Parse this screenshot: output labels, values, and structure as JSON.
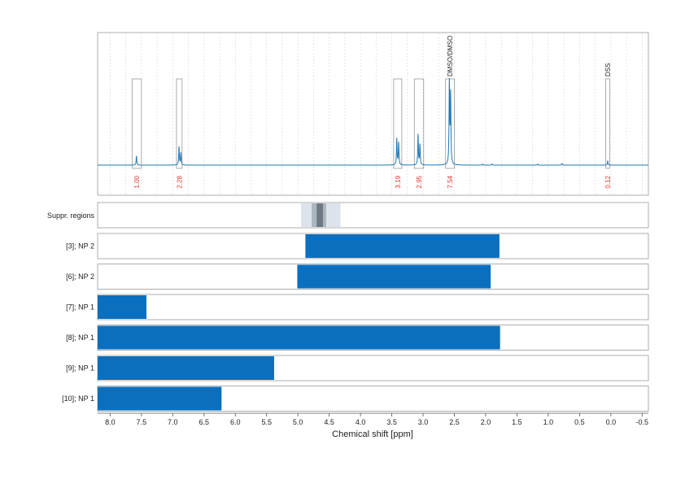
{
  "chart_data": {
    "type": "line",
    "xlabel": "Chemical shift [ppm]",
    "xlim": [
      8.2,
      -0.6
    ],
    "x_ticks": [
      8.0,
      7.5,
      7.0,
      6.5,
      6.0,
      5.5,
      5.0,
      4.5,
      4.0,
      3.5,
      3.0,
      2.5,
      2.0,
      1.5,
      1.0,
      0.5,
      0.0,
      -0.5
    ],
    "x_tick_labels": [
      "8.0",
      "7.5",
      "7.0",
      "6.5",
      "6.0",
      "5.5",
      "5.0",
      "4.5",
      "4.0",
      "3.5",
      "3.0",
      "2.5",
      "2.0",
      "1.5",
      "1.0",
      "0.5",
      "0.0",
      "-0.5"
    ],
    "grid": true,
    "spectrum": {
      "color": "#1f77b4",
      "baseline": 0.0,
      "peaks": [
        {
          "x": 7.58,
          "h": 0.09
        },
        {
          "x": 6.9,
          "h": 0.18
        },
        {
          "x": 6.87,
          "h": 0.12
        },
        {
          "x": 3.42,
          "h": 0.26
        },
        {
          "x": 3.39,
          "h": 0.22
        },
        {
          "x": 3.08,
          "h": 0.3
        },
        {
          "x": 3.05,
          "h": 0.2
        },
        {
          "x": 2.58,
          "h": 0.8
        },
        {
          "x": 2.56,
          "h": 0.68
        },
        {
          "x": 0.05,
          "h": 0.04
        },
        {
          "x": 1.9,
          "h": 0.012
        },
        {
          "x": 1.17,
          "h": 0.01
        },
        {
          "x": 0.78,
          "h": 0.015
        },
        {
          "x": 2.05,
          "h": 0.01
        }
      ]
    },
    "integrals": [
      {
        "from": 7.65,
        "to": 7.5,
        "value": "1.00"
      },
      {
        "from": 6.94,
        "to": 6.85,
        "value": "2.28"
      },
      {
        "from": 3.47,
        "to": 3.34,
        "value": "3.19"
      },
      {
        "from": 3.14,
        "to": 2.99,
        "value": "2.95"
      },
      {
        "from": 2.64,
        "to": 2.5,
        "value": "7.54"
      },
      {
        "from": 0.08,
        "to": 0.02,
        "value": "0.12"
      }
    ],
    "annotations": [
      {
        "x": 2.57,
        "text": "DMSO/DMSO"
      },
      {
        "x": 0.05,
        "text": "DSS"
      }
    ],
    "suppression": {
      "label": "Suppr. regions",
      "outer": [
        4.95,
        4.32
      ],
      "middle": [
        4.78,
        4.55
      ],
      "inner": [
        4.7,
        4.6
      ]
    },
    "rows": [
      {
        "label": "[3]; NP 2",
        "from": 4.88,
        "to": 1.78
      },
      {
        "label": "[6]; NP 2",
        "from": 5.01,
        "to": 1.92
      },
      {
        "label": "[7]; NP 1",
        "from": 8.2,
        "to": 7.42
      },
      {
        "label": "[8]; NP 1",
        "from": 8.2,
        "to": 1.77
      },
      {
        "label": "[9]; NP 1",
        "from": 8.2,
        "to": 5.38
      },
      {
        "label": "[10]; NP 1",
        "from": 8.2,
        "to": 6.22
      }
    ],
    "colors": {
      "bar": "#0a6fbf",
      "integral_text": "#e8322d",
      "frame": "#9a9a9a",
      "grid": "#c8c8c8"
    }
  }
}
